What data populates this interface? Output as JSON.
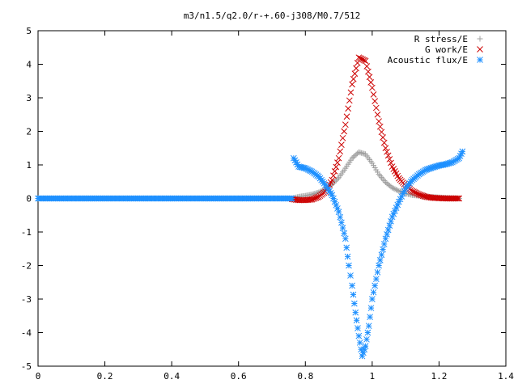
{
  "chart_data": {
    "type": "scatter",
    "title": "m3/n1.5/q2.0/r-+.60-j308/M0.7/512",
    "xlim": [
      0,
      1.4
    ],
    "ylim": [
      -5,
      5
    ],
    "xticks": [
      "0",
      "0.2",
      "0.4",
      "0.6",
      "0.8",
      "1",
      "1.2",
      "1.4"
    ],
    "yticks": [
      "5",
      "4",
      "3",
      "2",
      "1",
      "0",
      "-1",
      "-2",
      "-3",
      "-4",
      "-5"
    ],
    "legend_position": "top-right",
    "grid": false,
    "series": [
      {
        "name": "R stress/E",
        "marker": "+",
        "color": "#a0a0a0",
        "points": [
          [
            0.0,
            0.0
          ],
          [
            0.2,
            0.0
          ],
          [
            0.4,
            0.0
          ],
          [
            0.6,
            0.0
          ],
          [
            0.76,
            0.0
          ],
          [
            0.78,
            0.05
          ],
          [
            0.8,
            0.08
          ],
          [
            0.82,
            0.12
          ],
          [
            0.84,
            0.18
          ],
          [
            0.86,
            0.28
          ],
          [
            0.88,
            0.42
          ],
          [
            0.9,
            0.62
          ],
          [
            0.92,
            0.9
          ],
          [
            0.94,
            1.2
          ],
          [
            0.96,
            1.38
          ],
          [
            0.98,
            1.32
          ],
          [
            1.0,
            1.05
          ],
          [
            1.02,
            0.72
          ],
          [
            1.04,
            0.48
          ],
          [
            1.06,
            0.32
          ],
          [
            1.08,
            0.22
          ],
          [
            1.1,
            0.15
          ],
          [
            1.12,
            0.1
          ],
          [
            1.16,
            0.06
          ],
          [
            1.2,
            0.03
          ],
          [
            1.26,
            0.0
          ]
        ]
      },
      {
        "name": "G work/E",
        "marker": "x",
        "color": "#cc0000",
        "points": [
          [
            0.76,
            -0.02
          ],
          [
            0.78,
            -0.05
          ],
          [
            0.8,
            -0.05
          ],
          [
            0.82,
            -0.03
          ],
          [
            0.84,
            0.05
          ],
          [
            0.86,
            0.2
          ],
          [
            0.88,
            0.55
          ],
          [
            0.9,
            1.2
          ],
          [
            0.92,
            2.2
          ],
          [
            0.94,
            3.4
          ],
          [
            0.96,
            4.2
          ],
          [
            0.98,
            4.1
          ],
          [
            1.0,
            3.3
          ],
          [
            1.02,
            2.3
          ],
          [
            1.04,
            1.5
          ],
          [
            1.06,
            0.95
          ],
          [
            1.08,
            0.6
          ],
          [
            1.1,
            0.38
          ],
          [
            1.12,
            0.22
          ],
          [
            1.14,
            0.12
          ],
          [
            1.16,
            0.05
          ],
          [
            1.18,
            0.02
          ],
          [
            1.22,
            0.0
          ],
          [
            1.26,
            0.0
          ]
        ]
      },
      {
        "name": "Acoustic flux/E",
        "marker": "*",
        "color": "#1e90ff",
        "points": [
          [
            0.0,
            0.0
          ],
          [
            0.2,
            0.0
          ],
          [
            0.4,
            0.0
          ],
          [
            0.6,
            0.0
          ],
          [
            0.76,
            0.0
          ],
          [
            0.765,
            1.2
          ],
          [
            0.78,
            0.95
          ],
          [
            0.8,
            0.9
          ],
          [
            0.82,
            0.8
          ],
          [
            0.84,
            0.65
          ],
          [
            0.86,
            0.4
          ],
          [
            0.88,
            0.1
          ],
          [
            0.9,
            -0.4
          ],
          [
            0.92,
            -1.2
          ],
          [
            0.93,
            -2.0
          ],
          [
            0.94,
            -2.6
          ],
          [
            0.95,
            -3.4
          ],
          [
            0.96,
            -4.1
          ],
          [
            0.97,
            -4.7
          ],
          [
            0.98,
            -4.4
          ],
          [
            0.99,
            -3.8
          ],
          [
            1.0,
            -3.0
          ],
          [
            1.02,
            -2.0
          ],
          [
            1.04,
            -1.2
          ],
          [
            1.06,
            -0.55
          ],
          [
            1.08,
            -0.1
          ],
          [
            1.1,
            0.3
          ],
          [
            1.12,
            0.55
          ],
          [
            1.14,
            0.72
          ],
          [
            1.16,
            0.85
          ],
          [
            1.18,
            0.92
          ],
          [
            1.2,
            0.98
          ],
          [
            1.22,
            1.02
          ],
          [
            1.24,
            1.08
          ],
          [
            1.26,
            1.2
          ],
          [
            1.27,
            1.4
          ]
        ]
      }
    ]
  }
}
